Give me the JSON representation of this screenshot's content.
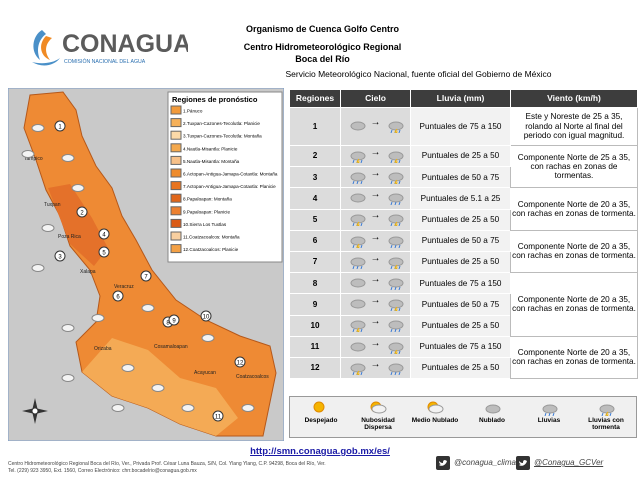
{
  "header": {
    "logo_title": "CONAGUA",
    "logo_subtitle": "COMISIÓN NACIONAL DEL AGUA",
    "org": "Organismo de Cuenca Golfo Centro",
    "center": "Centro Hidrometeorológico Regional",
    "office": "Boca del Río",
    "service": "Servicio Meteorológico Nacional, fuente oficial del Gobierno de México"
  },
  "map": {
    "legend_title": "Regiones de pronóstico",
    "legend": [
      {
        "label": "1.Pánuco",
        "color": "#f29a3a"
      },
      {
        "label": "2.Tuxpan-Cazones-Tecolutla: Planicie",
        "color": "#f6b15a"
      },
      {
        "label": "3.Tuxpan-Cazones-Tecolutla: Montaña",
        "color": "#fbd9a8"
      },
      {
        "label": "4.Nautla-Misantla: Planicie",
        "color": "#f4a94e"
      },
      {
        "label": "5.Nautla-Misantla: Montaña",
        "color": "#f7c088"
      },
      {
        "label": "6.Actopan-Antigua-Jamapa-Cotaxtla: Montaña",
        "color": "#ee8b2c"
      },
      {
        "label": "7.Actopan-Antigua-Jamapa-Cotaxtla: Planicie",
        "color": "#e8741f"
      },
      {
        "label": "8.Papaloapan: Montaña",
        "color": "#e0661a"
      },
      {
        "label": "9.Papaloapan: Planicie",
        "color": "#ec8030"
      },
      {
        "label": "10.Sierra Los Tuxtlas",
        "color": "#d95a16"
      },
      {
        "label": "11.Coatzacoalcos: Montaña",
        "color": "#f8cfa0"
      },
      {
        "label": "12.Coatzacoalcos: Planicie",
        "color": "#f3a045"
      }
    ],
    "places": [
      "Tampico",
      "Tuxpan",
      "Poza Rica",
      "Xalapa",
      "Veracruz",
      "Orizaba",
      "Cosamaloapan",
      "Acayucan",
      "Coatzacoalcos"
    ],
    "numbers": [
      "1",
      "2",
      "3",
      "4",
      "5",
      "6",
      "7",
      "8",
      "9",
      "10",
      "11",
      "12"
    ]
  },
  "table": {
    "headers": [
      "Regiones",
      "Cielo",
      "Lluvia (mm)",
      "Viento (km/h)"
    ],
    "rows": [
      {
        "region": "1",
        "rain": "Puntuales de 75 a 150"
      },
      {
        "region": "2",
        "rain": "Puntuales de 25 a 50"
      },
      {
        "region": "3",
        "rain": "Puntuales de 50 a 75"
      },
      {
        "region": "4",
        "rain": "Puntuales de 5.1 a 25"
      },
      {
        "region": "5",
        "rain": "Puntuales de 25 a 50"
      },
      {
        "region": "6",
        "rain": "Puntuales de 50 a 75"
      },
      {
        "region": "7",
        "rain": "Puntuales de 25 a 50"
      },
      {
        "region": "8",
        "rain": "Puntuales de 75 a 150"
      },
      {
        "region": "9",
        "rain": "Puntuales de 50 a 75"
      },
      {
        "region": "10",
        "rain": "Puntuales de 25 a 50"
      },
      {
        "region": "11",
        "rain": "Puntuales de 75 a 150"
      },
      {
        "region": "12",
        "rain": "Puntuales de 25 a 50"
      }
    ],
    "wind": [
      "Este y Noreste de 25 a 35, rolando al Norte al final del periodo con igual magnitud.",
      "Componente Norte de 25 a 35, con rachas en zonas de tormentas.",
      "Componente Norte de 20 a 35, con rachas en zonas de tormenta.",
      "Componente Norte de 20 a 35, con rachas en zonas de tormenta.",
      "Componente Norte de 20 a 35, con rachas en zonas de tormenta.",
      "Componente Norte de 20 a 35, con rachas en zonas de tormenta."
    ]
  },
  "sky_legend": [
    "Despejado",
    "Nubosidad Dispersa",
    "Medio Nublado",
    "Nublado",
    "Lluvias",
    "Lluvias con tormenta"
  ],
  "footer": {
    "url": "http://smn.conagua.gob.mx/es/",
    "address": "Centro Hidrometeorológico Regional Boca del Río, Ver., Privada Prof. César Luna Bauza, S/N, Col. Ylang Ylang, C.P. 94298, Boca del Río, Ver.",
    "contact": "Tel. (229) 923 3950, Ext. 1560, Correo Electrónico: chrr.bocadelrio@conagua.gob.mx",
    "twitter1": "@conagua_clima",
    "twitter2": "@Conagua_GCVer"
  }
}
